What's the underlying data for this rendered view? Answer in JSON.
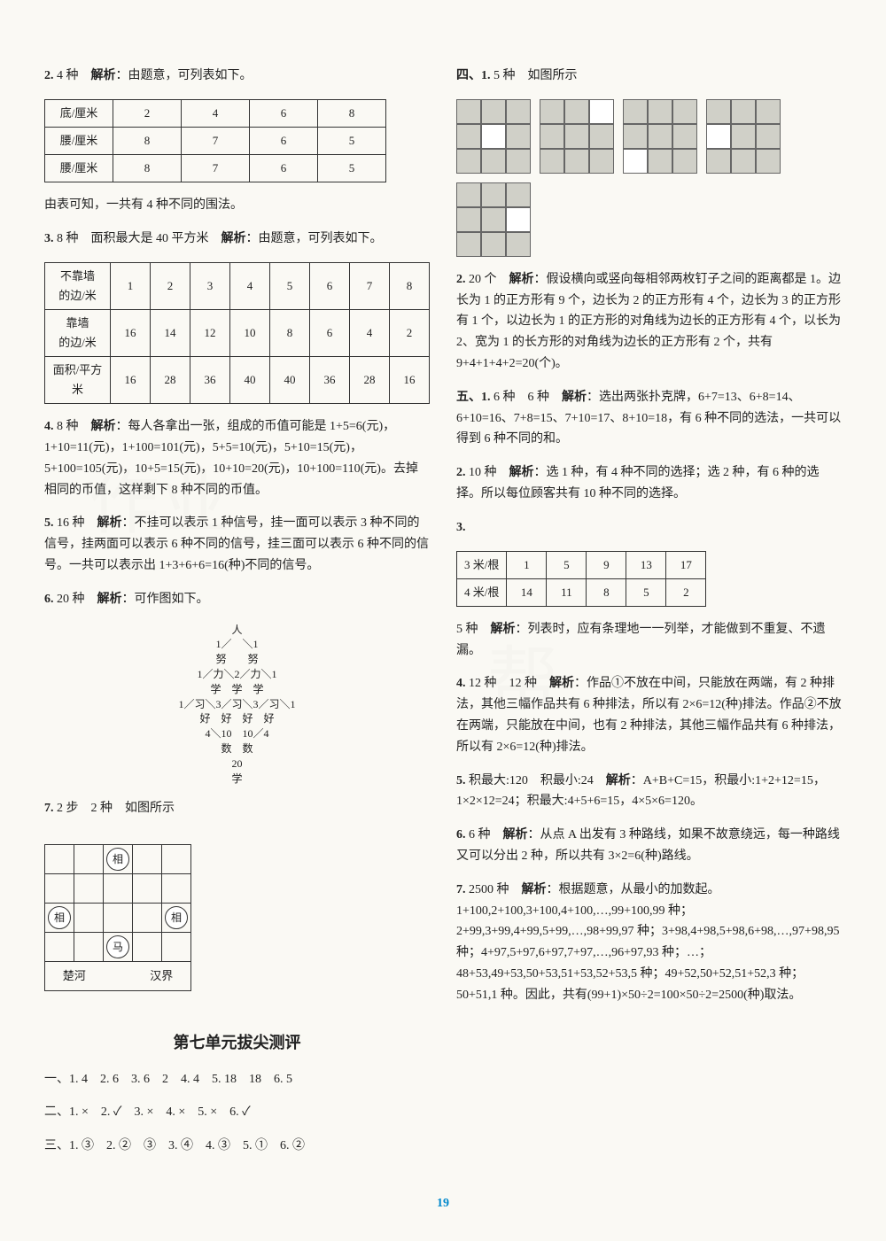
{
  "left": {
    "q2": {
      "label": "2.",
      "ans": "4 种",
      "jiexi": "解析",
      "text": "：由题意，可列表如下。"
    },
    "tbl1": {
      "rows": [
        [
          "底/厘米",
          "2",
          "4",
          "6",
          "8"
        ],
        [
          "腰/厘米",
          "8",
          "7",
          "6",
          "5"
        ],
        [
          "腰/厘米",
          "8",
          "7",
          "6",
          "5"
        ]
      ]
    },
    "q2after": "由表可知，一共有 4 种不同的围法。",
    "q3": {
      "label": "3.",
      "ans": "8 种　面积最大是 40 平方米",
      "jiexi": "解析",
      "text": "：由题意，可列表如下。"
    },
    "tbl2": {
      "rows": [
        [
          "不靠墙\n的边/米",
          "1",
          "2",
          "3",
          "4",
          "5",
          "6",
          "7",
          "8"
        ],
        [
          "靠墙\n的边/米",
          "16",
          "14",
          "12",
          "10",
          "8",
          "6",
          "4",
          "2"
        ],
        [
          "面积/平方米",
          "16",
          "28",
          "36",
          "40",
          "40",
          "36",
          "28",
          "16"
        ]
      ]
    },
    "q4": {
      "label": "4.",
      "ans": "8 种",
      "jiexi": "解析",
      "text": "：每人各拿出一张，组成的币值可能是 1+5=6(元)，1+10=11(元)，1+100=101(元)，5+5=10(元)，5+10=15(元)，5+100=105(元)，10+5=15(元)，10+10=20(元)，10+100=110(元)。去掉相同的币值，这样剩下 8 种不同的币值。"
    },
    "q5": {
      "label": "5.",
      "ans": "16 种",
      "jiexi": "解析",
      "text": "：不挂可以表示 1 种信号，挂一面可以表示 3 种不同的信号，挂两面可以表示 6 种不同的信号，挂三面可以表示 6 种不同的信号。一共可以表示出 1+3+6+6=16(种)不同的信号。"
    },
    "q6": {
      "label": "6.",
      "ans": "20 种",
      "jiexi": "解析",
      "text": "：可作图如下。"
    },
    "diagram": "人\n1／　＼1\n努　　努\n1／力＼2／力＼1\n学　学　学\n1／习＼3／习＼3／习＼1\n好　好　好　好\n4＼10　10／4\n数　数\n20\n学",
    "q7": {
      "label": "7.",
      "ans": "2 步　2 种",
      "text": "如图所示"
    },
    "board": {
      "chuhe": "楚河",
      "hanjie": "汉界",
      "xiang": "相",
      "ma": "马"
    },
    "section": "第七单元拔尖测评",
    "yi": "一、1. 4　2. 6　3. 6　2　4. 4　5. 18　18　6. 5",
    "er": "二、1. ×　2. ✓　3. ×　4. ×　5. ×　6. ✓",
    "san": "三、1. ③　2. ②　③　3. ④　4. ③　5. ①　6. ②"
  },
  "right": {
    "si": {
      "label": "四、1.",
      "ans": "5 种",
      "text": "如图所示"
    },
    "grids": [
      [
        0,
        1,
        2,
        3,
        5,
        6,
        7,
        8
      ],
      [
        0,
        1,
        3,
        4,
        5,
        6,
        7,
        8
      ],
      [
        0,
        1,
        2,
        3,
        4,
        5,
        7,
        8
      ],
      [
        0,
        1,
        2,
        4,
        5,
        6,
        7,
        8
      ],
      [
        0,
        1,
        2,
        3,
        4,
        6,
        7,
        8
      ]
    ],
    "q2": {
      "label": "2.",
      "ans": "20 个",
      "jiexi": "解析",
      "text": "：假设横向或竖向每相邻两枚钉子之间的距离都是 1。边长为 1 的正方形有 9 个，边长为 2 的正方形有 4 个，边长为 3 的正方形有 1 个，以边长为 1 的正方形的对角线为边长的正方形有 4 个，以长为 2、宽为 1 的长方形的对角线为边长的正方形有 2 个，共有 9+4+1+4+2=20(个)。"
    },
    "wu": {
      "label": "五、1.",
      "ans": "6 种　6 种",
      "jiexi": "解析",
      "text": "：选出两张扑克牌，6+7=13、6+8=14、6+10=16、7+8=15、7+10=17、8+10=18，有 6 种不同的选法，一共可以得到 6 种不同的和。"
    },
    "q2b": {
      "label": "2.",
      "ans": "10 种",
      "jiexi": "解析",
      "text": "：选 1 种，有 4 种不同的选择；选 2 种，有 6 种的选择。所以每位顾客共有 10 种不同的选择。"
    },
    "q3": {
      "label": "3."
    },
    "tbl3": {
      "rows": [
        [
          "3 米/根",
          "1",
          "5",
          "9",
          "13",
          "17"
        ],
        [
          "4 米/根",
          "14",
          "11",
          "8",
          "5",
          "2"
        ]
      ]
    },
    "q3after": {
      "ans": "5 种",
      "jiexi": "解析",
      "text": "：列表时，应有条理地一一列举，才能做到不重复、不遗漏。"
    },
    "q4": {
      "label": "4.",
      "ans": "12 种　12 种",
      "jiexi": "解析",
      "text": "：作品①不放在中间，只能放在两端，有 2 种排法，其他三幅作品共有 6 种排法，所以有 2×6=12(种)排法。作品②不放在两端，只能放在中间，也有 2 种排法，其他三幅作品共有 6 种排法，所以有 2×6=12(种)排法。"
    },
    "q5": {
      "label": "5.",
      "ans": "积最大:120　积最小:24",
      "jiexi": "解析",
      "text": "：A+B+C=15，积最小:1+2+12=15，1×2×12=24；积最大:4+5+6=15，4×5×6=120。"
    },
    "q6": {
      "label": "6.",
      "ans": "6 种",
      "jiexi": "解析",
      "text": "：从点 A 出发有 3 种路线，如果不故意绕远，每一种路线又可以分出 2 种，所以共有 3×2=6(种)路线。"
    },
    "q7": {
      "label": "7.",
      "ans": "2500 种",
      "jiexi": "解析",
      "text": "：根据题意，从最小的加数起。1+100,2+100,3+100,4+100,…,99+100,99 种；2+99,3+99,4+99,5+99,…,98+99,97 种；3+98,4+98,5+98,6+98,…,97+98,95 种；4+97,5+97,6+97,7+97,…,96+97,93 种；…；48+53,49+53,50+53,51+53,52+53,5 种；49+52,50+52,51+52,3 种；50+51,1 种。因此，共有(99+1)×50÷2=100×50÷2=2500(种)取法。"
    }
  },
  "pagenum": "19"
}
